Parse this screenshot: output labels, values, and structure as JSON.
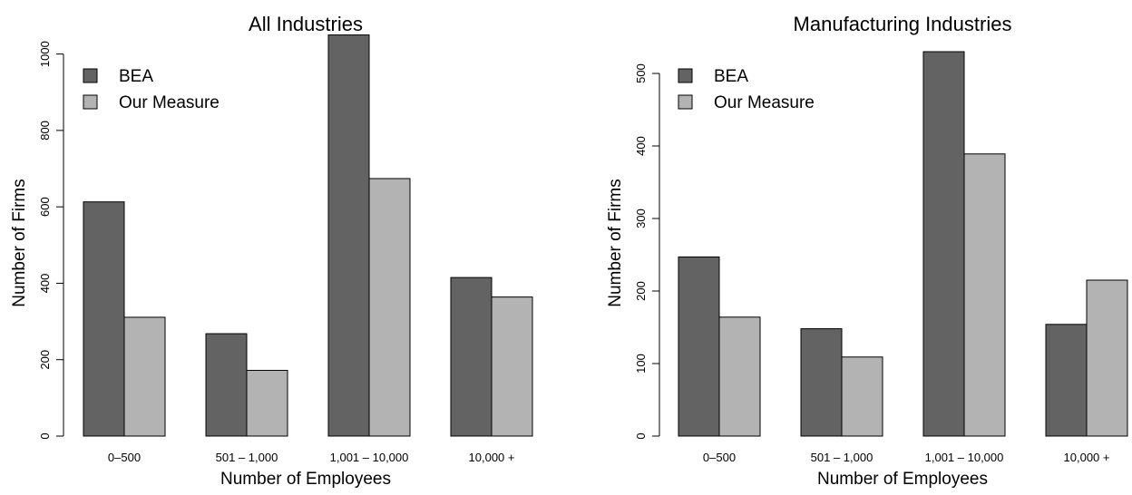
{
  "chart_data": [
    {
      "type": "bar",
      "title": "All Industries",
      "xlabel": "Number of Employees",
      "ylabel": "Number of Firms",
      "categories": [
        "0–500",
        "501 – 1,000",
        "1,001 – 10,000",
        "10,000 +"
      ],
      "series": [
        {
          "name": "BEA",
          "color": "#636363",
          "values": [
            613,
            268,
            1050,
            415
          ]
        },
        {
          "name": "Our Measure",
          "color": "#b3b3b3",
          "values": [
            311,
            172,
            674,
            364
          ]
        }
      ],
      "ylim": [
        0,
        1000
      ],
      "yticks": [
        "0",
        "200",
        "400",
        "600",
        "800",
        "1000"
      ],
      "legend": "top-left",
      "grid": false
    },
    {
      "type": "bar",
      "title": "Manufacturing Industries",
      "xlabel": "Number of Employees",
      "ylabel": "Number of Firms",
      "categories": [
        "0–500",
        "501 – 1,000",
        "1,001 – 10,000",
        "10,000 +"
      ],
      "series": [
        {
          "name": "BEA",
          "color": "#636363",
          "values": [
            247,
            148,
            530,
            154
          ]
        },
        {
          "name": "Our Measure",
          "color": "#b3b3b3",
          "values": [
            164,
            109,
            389,
            215
          ]
        }
      ],
      "ylim": [
        0,
        500
      ],
      "yticks": [
        "0",
        "100",
        "200",
        "300",
        "400",
        "500"
      ],
      "legend": "top-left",
      "grid": false
    }
  ]
}
